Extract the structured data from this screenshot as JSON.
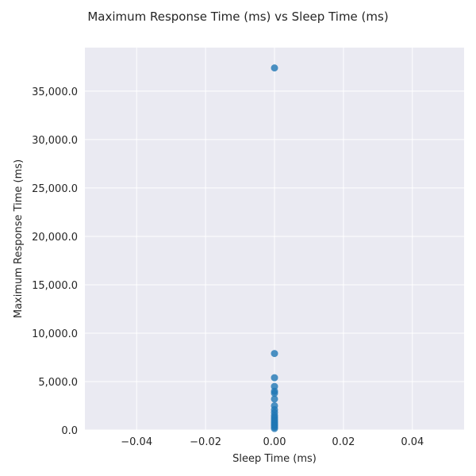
{
  "chart_data": {
    "type": "scatter",
    "title": "Maximum Response Time (ms) vs Sleep Time (ms)",
    "xlabel": "Sleep Time (ms)",
    "ylabel": "Maximum Response Time (ms)",
    "xlim": [
      -0.055,
      0.055
    ],
    "ylim": [
      0,
      39500
    ],
    "x_ticks": [
      -0.04,
      -0.02,
      0.0,
      0.02,
      0.04
    ],
    "x_tick_labels": [
      "−0.04",
      "−0.02",
      "0.00",
      "0.02",
      "0.04"
    ],
    "y_ticks": [
      0,
      5000,
      10000,
      15000,
      20000,
      25000,
      30000,
      35000
    ],
    "y_tick_labels": [
      "0.0",
      "5,000.0",
      "10,000.0",
      "15,000.0",
      "20,000.0",
      "25,000.0",
      "30,000.0",
      "35,000.0"
    ],
    "grid": true,
    "point_color": "#1f77b4",
    "background_color": "#eaeaf2",
    "points": [
      {
        "x": 0,
        "y": 37400
      },
      {
        "x": 0,
        "y": 7900
      },
      {
        "x": 0,
        "y": 5400
      },
      {
        "x": 0,
        "y": 4500
      },
      {
        "x": 0,
        "y": 4000
      },
      {
        "x": 0,
        "y": 3800
      },
      {
        "x": 0,
        "y": 3200
      },
      {
        "x": 0,
        "y": 2500
      },
      {
        "x": 0,
        "y": 2100
      },
      {
        "x": 0,
        "y": 1800
      },
      {
        "x": 0,
        "y": 1500
      },
      {
        "x": 0,
        "y": 1300
      },
      {
        "x": 0,
        "y": 1100
      },
      {
        "x": 0,
        "y": 900
      },
      {
        "x": 0,
        "y": 750
      },
      {
        "x": 0,
        "y": 600
      },
      {
        "x": 0,
        "y": 450
      },
      {
        "x": 0,
        "y": 300
      },
      {
        "x": 0,
        "y": 150
      }
    ]
  }
}
